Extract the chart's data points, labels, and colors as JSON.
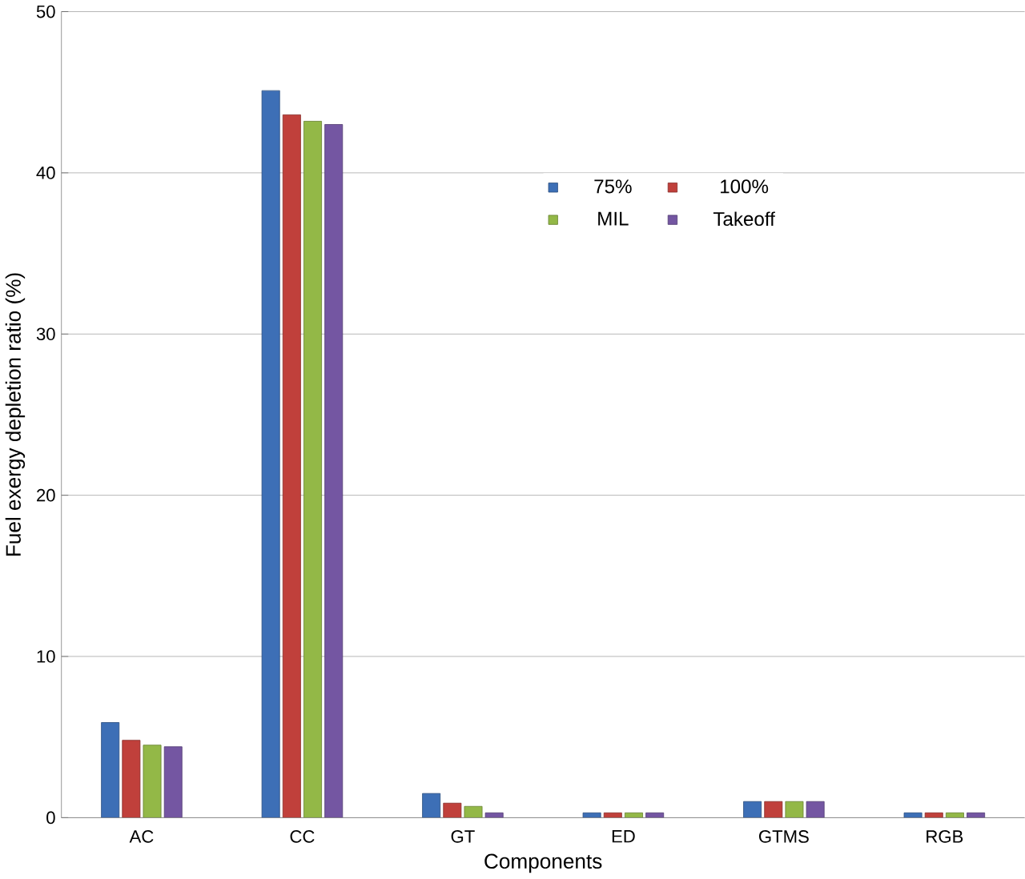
{
  "chart_data": {
    "type": "bar",
    "xlabel": "Components",
    "ylabel": "Fuel exergy depletion ratio (%)",
    "categories": [
      "AC",
      "CC",
      "GT",
      "ED",
      "GTMS",
      "RGB"
    ],
    "series": [
      {
        "name": "75%",
        "color": "#3d6fb6",
        "values": [
          5.9,
          45.1,
          1.5,
          0.3,
          1.0,
          0.3
        ]
      },
      {
        "name": "100%",
        "color": "#c0403b",
        "values": [
          4.8,
          43.6,
          0.9,
          0.3,
          1.0,
          0.3
        ]
      },
      {
        "name": "MIL",
        "color": "#93b847",
        "values": [
          4.5,
          43.2,
          0.7,
          0.3,
          1.0,
          0.3
        ]
      },
      {
        "name": "Takeoff",
        "color": "#7456a2",
        "values": [
          4.4,
          43.0,
          0.3,
          0.3,
          1.0,
          0.3
        ]
      }
    ],
    "ylim": [
      0,
      50
    ],
    "yticks": [
      0,
      10,
      20,
      30,
      40,
      50
    ],
    "grid": "y",
    "legend": "top right"
  }
}
